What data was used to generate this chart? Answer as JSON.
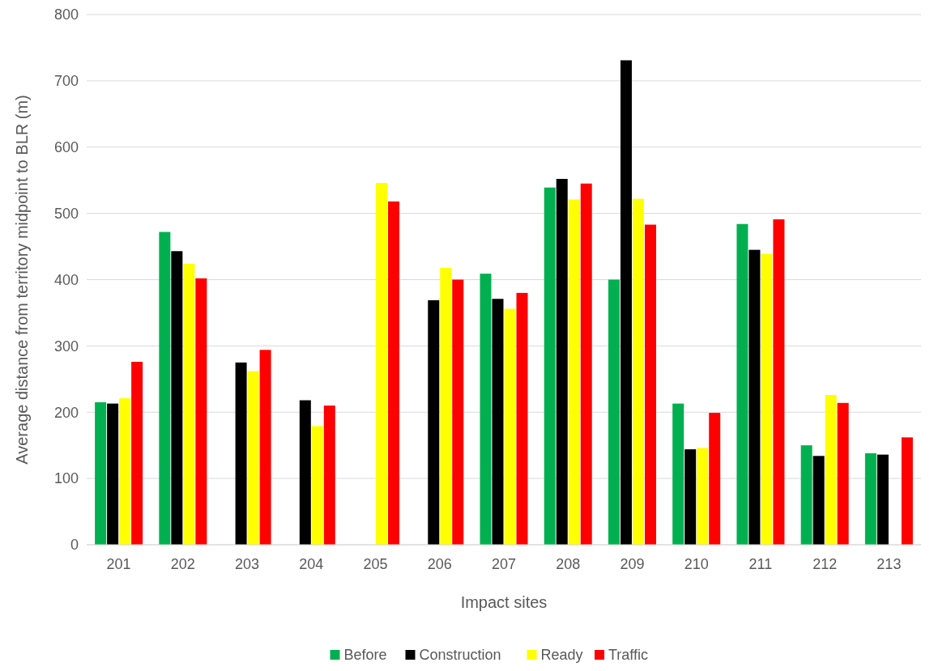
{
  "chart_data": {
    "type": "bar",
    "xlabel": "Impact sites",
    "ylabel": "Average distance from territory midpoint to BLR (m)",
    "categories": [
      "201",
      "202",
      "203",
      "204",
      "205",
      "206",
      "207",
      "208",
      "209",
      "210",
      "211",
      "212",
      "213"
    ],
    "ylim": [
      0,
      800
    ],
    "yticks": [
      0,
      100,
      200,
      300,
      400,
      500,
      600,
      700,
      800
    ],
    "grid": "y",
    "legend": "bottom",
    "series": [
      {
        "name": "Before",
        "color": "#00b050",
        "values": [
          215,
          472,
          null,
          null,
          null,
          null,
          409,
          539,
          400,
          213,
          484,
          150,
          138
        ]
      },
      {
        "name": "Construction",
        "color": "#000000",
        "values": [
          213,
          443,
          275,
          218,
          null,
          369,
          371,
          552,
          731,
          144,
          445,
          134,
          136
        ]
      },
      {
        "name": "Ready",
        "color": "#ffff00",
        "values": [
          221,
          424,
          262,
          179,
          546,
          418,
          356,
          521,
          522,
          146,
          439,
          226,
          null
        ]
      },
      {
        "name": "Traffic",
        "color": "#ff0000",
        "values": [
          276,
          402,
          294,
          210,
          518,
          400,
          380,
          545,
          483,
          199,
          491,
          214,
          162
        ]
      }
    ]
  }
}
